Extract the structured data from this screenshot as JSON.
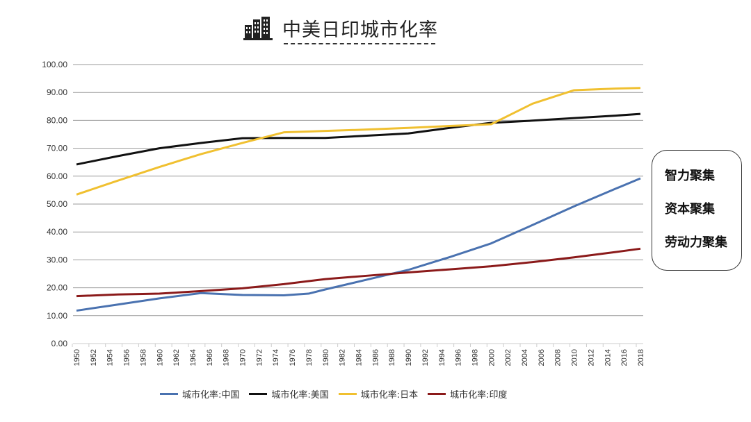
{
  "title": "中美日印城市化率",
  "side_box": {
    "items": [
      "智力聚集",
      "资本聚集",
      "劳动力聚集"
    ]
  },
  "chart_data": {
    "type": "line",
    "title": "中美日印城市化率",
    "xlabel": "",
    "ylabel": "",
    "xlim": [
      1950,
      2018
    ],
    "ylim": [
      0,
      100
    ],
    "y_ticks": [
      "0.00",
      "10.00",
      "20.00",
      "30.00",
      "40.00",
      "50.00",
      "60.00",
      "70.00",
      "80.00",
      "90.00",
      "100.00"
    ],
    "x_ticks": [
      "1950",
      "1952",
      "1954",
      "1956",
      "1958",
      "1960",
      "1962",
      "1964",
      "1966",
      "1968",
      "1970",
      "1972",
      "1974",
      "1976",
      "1978",
      "1980",
      "1982",
      "1984",
      "1986",
      "1988",
      "1990",
      "1992",
      "1994",
      "1996",
      "1998",
      "2000",
      "2002",
      "2004",
      "2006",
      "2008",
      "2010",
      "2012",
      "2014",
      "2016",
      "2018"
    ],
    "grid": true,
    "legend_position": "bottom",
    "x": [
      1950,
      1955,
      1960,
      1965,
      1970,
      1975,
      1978,
      1980,
      1985,
      1990,
      1995,
      2000,
      2005,
      2010,
      2015,
      2018
    ],
    "series": [
      {
        "name": "城市化率:中国",
        "color": "#4a72b0",
        "values": [
          11.8,
          14.0,
          16.2,
          18.1,
          17.4,
          17.3,
          17.9,
          19.4,
          22.9,
          26.4,
          31.0,
          35.9,
          42.5,
          49.2,
          55.5,
          59.2
        ]
      },
      {
        "name": "城市化率:美国",
        "color": "#111111",
        "values": [
          64.2,
          67.2,
          70.0,
          71.9,
          73.6,
          73.7,
          73.7,
          73.7,
          74.5,
          75.3,
          77.3,
          79.1,
          79.9,
          80.8,
          81.7,
          82.3
        ]
      },
      {
        "name": "城市化率:日本",
        "color": "#f0c030",
        "values": [
          53.4,
          58.4,
          63.3,
          67.9,
          71.9,
          75.7,
          76.0,
          76.2,
          76.7,
          77.3,
          78.0,
          78.6,
          86.0,
          90.8,
          91.4,
          91.6
        ]
      },
      {
        "name": "城市化率:印度",
        "color": "#8b1a1a",
        "values": [
          17.0,
          17.6,
          17.9,
          18.8,
          19.8,
          21.3,
          22.4,
          23.1,
          24.3,
          25.5,
          26.6,
          27.7,
          29.2,
          30.9,
          32.8,
          34.0
        ]
      }
    ]
  }
}
